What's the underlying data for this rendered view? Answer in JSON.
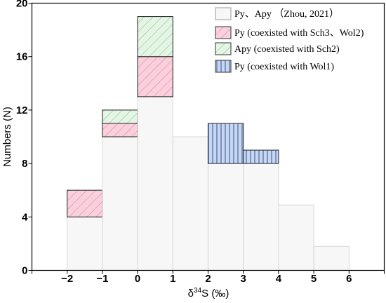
{
  "chart_data": {
    "type": "bar",
    "stacked": true,
    "histogram": true,
    "xlabel": "δ34S (‰)",
    "ylabel": "Numbers (N)",
    "xlim": [
      -3,
      7
    ],
    "ylim": [
      0,
      20
    ],
    "x_ticks": [
      "−2",
      "−1",
      "0",
      "1",
      "2",
      "3",
      "4",
      "5",
      "6"
    ],
    "y_ticks": [
      "0",
      "4",
      "8",
      "12",
      "16",
      "20"
    ],
    "bins": [
      [
        -2,
        -1
      ],
      [
        -1,
        0
      ],
      [
        0,
        1
      ],
      [
        1,
        2
      ],
      [
        2,
        3
      ],
      [
        3,
        4
      ],
      [
        4,
        5
      ],
      [
        5,
        6
      ]
    ],
    "series": [
      {
        "name": "Py、Apy （Zhou, 2021）",
        "fill": "#f7f7f7",
        "pattern": "none",
        "values": [
          4,
          10,
          13,
          10,
          8,
          8,
          4.9,
          1.8
        ]
      },
      {
        "name": "Py (coexisted with Sch3、Wol2)",
        "fill": "#f9d0dc",
        "pattern": "diagonal",
        "values": [
          2,
          1,
          3,
          0,
          0,
          0,
          0,
          0
        ]
      },
      {
        "name": "Apy (coexisted with Sch2)",
        "fill": "#e5f5e5",
        "pattern": "diagonal",
        "values": [
          0,
          1,
          3,
          0,
          0,
          0,
          0,
          0
        ]
      },
      {
        "name": "Py (coexisted with Wol1)",
        "fill": "#c5d7f2",
        "pattern": "vertical",
        "values": [
          0,
          0,
          0,
          0,
          3,
          1,
          0,
          0
        ]
      }
    ],
    "legend_position": "top-right",
    "grid": false,
    "colors": {
      "border_light": "#cfcfcf",
      "border_dark": "#333333"
    }
  }
}
